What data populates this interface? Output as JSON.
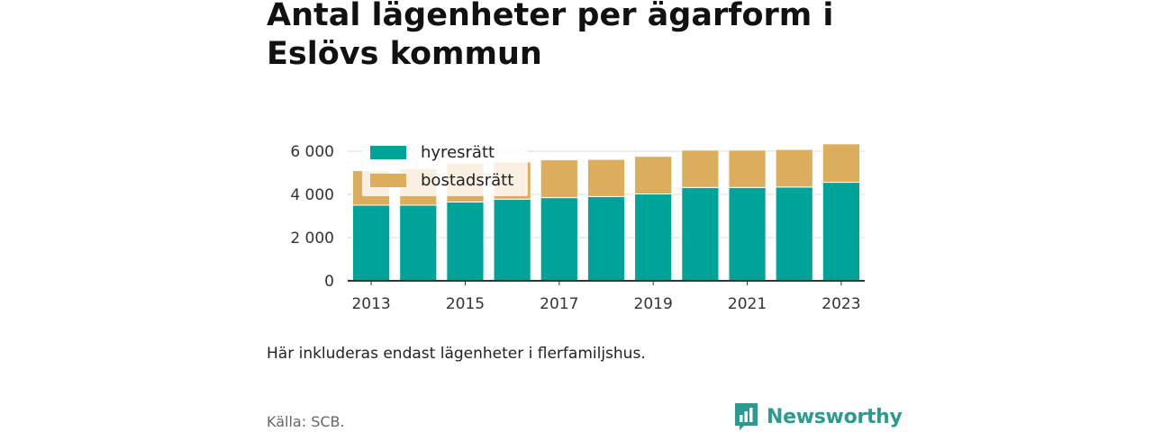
{
  "title": "Antal lägenheter per ägarform i Eslövs kommun",
  "note": "Här inkluderas endast lägenheter i flerfamiljshus.",
  "source": "Källa: SCB.",
  "brand": {
    "name": "Newsworthy",
    "icon": "newsworthy-logo-icon",
    "color": "#2d9a8f"
  },
  "chart_data": {
    "type": "bar",
    "stacked": true,
    "categories": [
      "2013",
      "2014",
      "2015",
      "2016",
      "2017",
      "2018",
      "2019",
      "2020",
      "2021",
      "2022",
      "2023"
    ],
    "x_tick_labels": [
      "2013",
      "2015",
      "2017",
      "2019",
      "2021",
      "2023"
    ],
    "series": [
      {
        "name": "hyresrätt",
        "color": "#00a398",
        "values": [
          3500,
          3500,
          3650,
          3780,
          3850,
          3900,
          4020,
          4320,
          4320,
          4340,
          4560
        ]
      },
      {
        "name": "bostadsrätt",
        "color": "#dbad5c",
        "values": [
          1600,
          1700,
          1800,
          1720,
          1750,
          1720,
          1740,
          1730,
          1730,
          1740,
          1780
        ]
      }
    ],
    "y_ticks": [
      0,
      2000,
      4000,
      6000
    ],
    "y_tick_labels": [
      "0",
      "2 000",
      "4 000",
      "6 000"
    ],
    "ylim": [
      0,
      6000
    ],
    "xlabel": "",
    "ylabel": "",
    "grid": true,
    "legend_position": "top-left"
  }
}
